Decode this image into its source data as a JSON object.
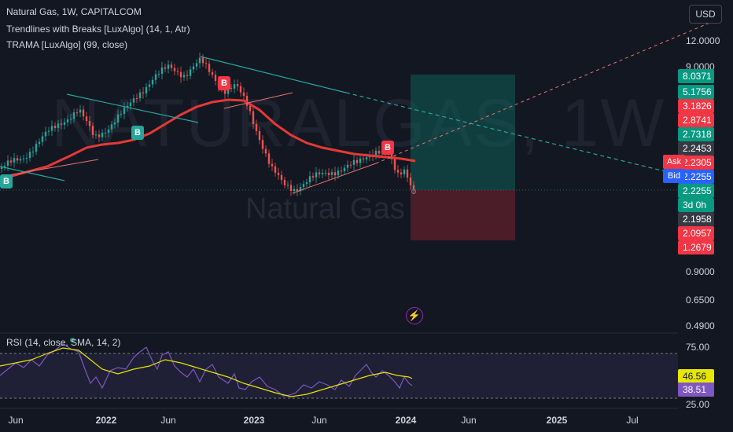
{
  "chart_header": {
    "symbol_line": "Natural Gas, 1W, CAPITALCOM",
    "indicator_1": "Trendlines with Breaks [LuxAlgo] (14, 1, Atr)",
    "indicator_2": "TRAMA [LuxAlgo] (99, close)",
    "rsi_line": "RSI (14, close, SMA, 14, 2)"
  },
  "currency_button": "USD",
  "watermark": {
    "big": "NATURALGAS, 1W",
    "small": "Natural Gas"
  },
  "price_axis": {
    "labels": [
      "12.0000",
      "9.0000",
      "0.9000",
      "0.6500",
      "0.4900"
    ],
    "tags": [
      {
        "text": "8.0371",
        "color": "#089981"
      },
      {
        "text": "5.1756",
        "color": "#089981"
      },
      {
        "text": "3.1826",
        "color": "#f23645"
      },
      {
        "text": "2.8741",
        "color": "#f23645"
      },
      {
        "text": "2.7318",
        "color": "#089981"
      },
      {
        "text": "2.2453",
        "color": "#363a45"
      },
      {
        "text": "2.2305",
        "color": "#f23645"
      },
      {
        "text": "2.2255",
        "color": "#2962ff"
      },
      {
        "text": "2.2255",
        "color": "#089981"
      },
      {
        "text": "3d 0h",
        "color": "#089981"
      },
      {
        "text": "2.1958",
        "color": "#363a45"
      },
      {
        "text": "2.0957",
        "color": "#f23645"
      },
      {
        "text": "1.2679",
        "color": "#f23645"
      }
    ],
    "ask_label": "Ask",
    "bid_label": "Bid"
  },
  "rsi_axis": {
    "labels": [
      "75.00",
      "25.00"
    ],
    "tag_sma": "46.56",
    "tag_rsi": "38.51"
  },
  "time_axis": [
    {
      "text": "Jun",
      "bold": false
    },
    {
      "text": "2022",
      "bold": true
    },
    {
      "text": "Jun",
      "bold": false
    },
    {
      "text": "2023",
      "bold": true
    },
    {
      "text": "Jun",
      "bold": false
    },
    {
      "text": "2024",
      "bold": true
    },
    {
      "text": "Jun",
      "bold": false
    },
    {
      "text": "2025",
      "bold": true
    },
    {
      "text": "Jul",
      "bold": false
    }
  ],
  "signal_badges": [
    "B",
    "B",
    "B",
    "B"
  ],
  "colors": {
    "bg": "#131722",
    "up": "#26a69a",
    "down": "#ef5350",
    "trama": "#e53935",
    "rsi": "#7e57c2",
    "rsi_ma": "#e6e600",
    "trend_up": "#26a69a",
    "trend_down": "#f7525f"
  }
}
